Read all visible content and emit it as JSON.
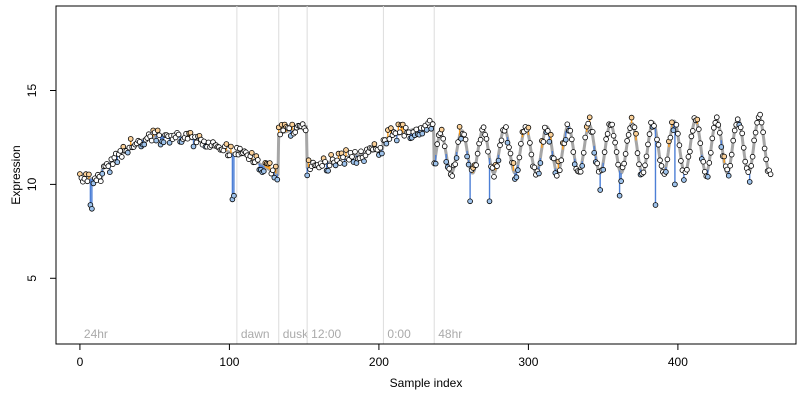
{
  "chart_data": {
    "type": "scatter",
    "title": "",
    "xlabel": "Sample index",
    "ylabel": "Expression",
    "xlim": [
      -16,
      479
    ],
    "ylim": [
      1.5,
      19.5
    ],
    "xticks": [
      0,
      100,
      200,
      300,
      400
    ],
    "yticks": [
      5,
      10,
      15
    ],
    "grid": false,
    "legend": "none",
    "vertical_markers": [
      {
        "x": 0,
        "label": "24hr"
      },
      {
        "x": 105,
        "label": "dawn"
      },
      {
        "x": 133,
        "label": "dusk"
      },
      {
        "x": 152,
        "label": "12:00"
      },
      {
        "x": 203,
        "label": "0:00"
      },
      {
        "x": 237,
        "label": "48hr"
      }
    ],
    "colors": {
      "fit_line": "#a6a6a6",
      "residual_above": "#ff9f1c",
      "residual_below": "#4c7fd6",
      "marker_line": "#dcdcdc",
      "marker_label": "#aaaaaa",
      "point_above": "#fcd29a",
      "point_below": "#9ec3ec",
      "point_on_fit": "#ffffff"
    },
    "segments": [
      {
        "x_start": 0,
        "x_end": 15,
        "y_start": 10.3,
        "y_end": 10.3
      },
      {
        "x_start": 15,
        "x_end": 105,
        "y_start": 10.8,
        "y_end": 11.5,
        "peak_x": 55,
        "peak_y": 12.6
      },
      {
        "x_start": 105,
        "x_end": 133,
        "y_start": 11.8,
        "y_end": 10.5
      },
      {
        "x_start": 133,
        "x_end": 152,
        "y_start": 12.7,
        "y_end": 13.1
      },
      {
        "x_start": 152,
        "x_end": 203,
        "y_start": 10.9,
        "y_end": 11.9
      },
      {
        "x_start": 203,
        "x_end": 237,
        "y_start": 12.4,
        "y_end": 13.3
      },
      {
        "x_start": 237,
        "x_end": 463,
        "oscillating": true,
        "period": 14.2,
        "start_y": 11.4,
        "mid_y": 11.7,
        "mid_y_end": 12.1,
        "amp_start": 1.1,
        "amp_end": 1.5
      }
    ],
    "outliers": [
      {
        "x": 7,
        "y": 8.9
      },
      {
        "x": 8,
        "y": 8.7
      },
      {
        "x": 102,
        "y": 9.2
      },
      {
        "x": 103,
        "y": 9.4
      },
      {
        "x": 261,
        "y": 9.1
      },
      {
        "x": 274,
        "y": 9.1
      },
      {
        "x": 348,
        "y": 9.7
      },
      {
        "x": 361,
        "y": 9.4
      },
      {
        "x": 385,
        "y": 8.9
      },
      {
        "x": 398,
        "y": 10.0
      }
    ],
    "n_points": 463
  }
}
